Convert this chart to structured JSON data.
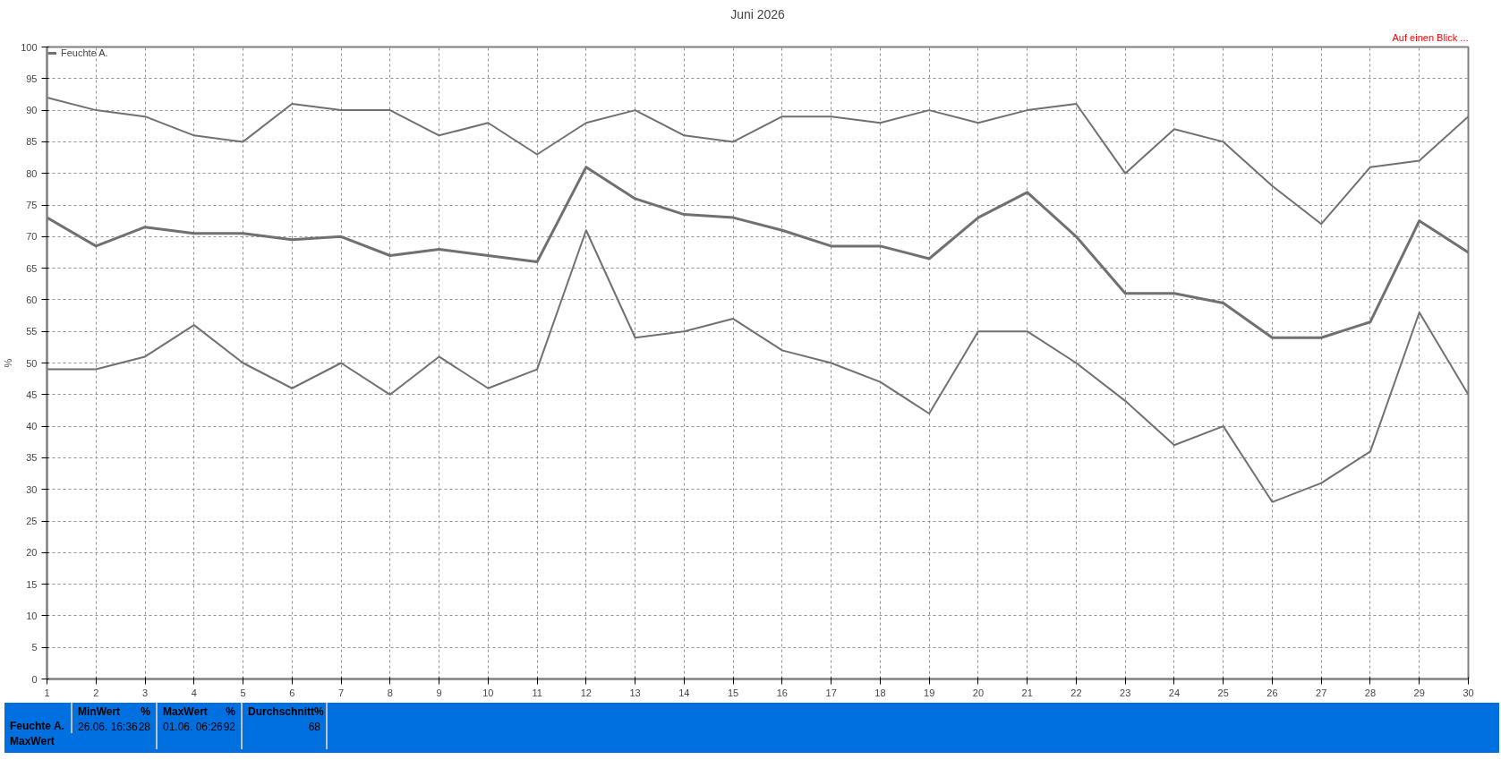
{
  "chart_data": {
    "type": "line",
    "title": "Juni 2026",
    "ylabel": "%",
    "x": [
      1,
      2,
      3,
      4,
      5,
      6,
      7,
      8,
      9,
      10,
      11,
      12,
      13,
      14,
      15,
      16,
      17,
      18,
      19,
      20,
      21,
      22,
      23,
      24,
      25,
      26,
      27,
      28,
      29,
      30
    ],
    "series": [
      {
        "color": "#707070",
        "values": [
          92,
          90,
          89,
          86,
          85,
          91,
          90,
          90,
          86,
          88,
          83,
          88,
          90,
          86,
          85,
          89,
          89,
          88,
          90,
          88,
          90,
          91,
          80,
          87,
          85,
          78,
          72,
          81,
          82,
          89
        ]
      },
      {
        "name": "Feuchte A.",
        "color": "#707070",
        "values": [
          73,
          68.5,
          71.5,
          70.5,
          70.5,
          69.5,
          70,
          67,
          68,
          67,
          66,
          81,
          76,
          73.5,
          73,
          71,
          68.5,
          68.5,
          66.5,
          73,
          77,
          70,
          61,
          61,
          59.5,
          54,
          54,
          56.5,
          72.5,
          67.5
        ]
      },
      {
        "color": "#707070",
        "values": [
          49,
          49,
          51,
          56,
          50,
          46,
          50,
          45,
          51,
          46,
          49,
          71,
          54,
          55,
          57,
          52,
          50,
          47,
          42,
          55,
          55,
          50,
          44,
          37,
          40,
          28,
          31,
          36,
          58,
          45
        ]
      }
    ],
    "xlim": [
      1,
      30
    ],
    "xticks": [
      1,
      2,
      3,
      4,
      5,
      6,
      7,
      8,
      9,
      10,
      11,
      12,
      13,
      14,
      15,
      16,
      17,
      18,
      19,
      20,
      21,
      22,
      23,
      24,
      25,
      26,
      27,
      28,
      29,
      30
    ],
    "ylim": [
      0,
      100
    ],
    "yticks": [
      0,
      5,
      10,
      15,
      20,
      25,
      30,
      35,
      40,
      45,
      50,
      55,
      60,
      65,
      70,
      75,
      80,
      85,
      90,
      95,
      100
    ],
    "grid": true,
    "legend": "top left",
    "marker": "none",
    "line_style": "solid",
    "annotations": [
      "Auf einen Blick ...",
      "Feuchte A.",
      "MaxWert",
      "MinWert",
      "%",
      "26.06.  16:36",
      "28",
      "MaxWert",
      "%",
      "01.06.  06:26",
      "92",
      "Durchschnitt",
      "%",
      "68"
    ]
  }
}
